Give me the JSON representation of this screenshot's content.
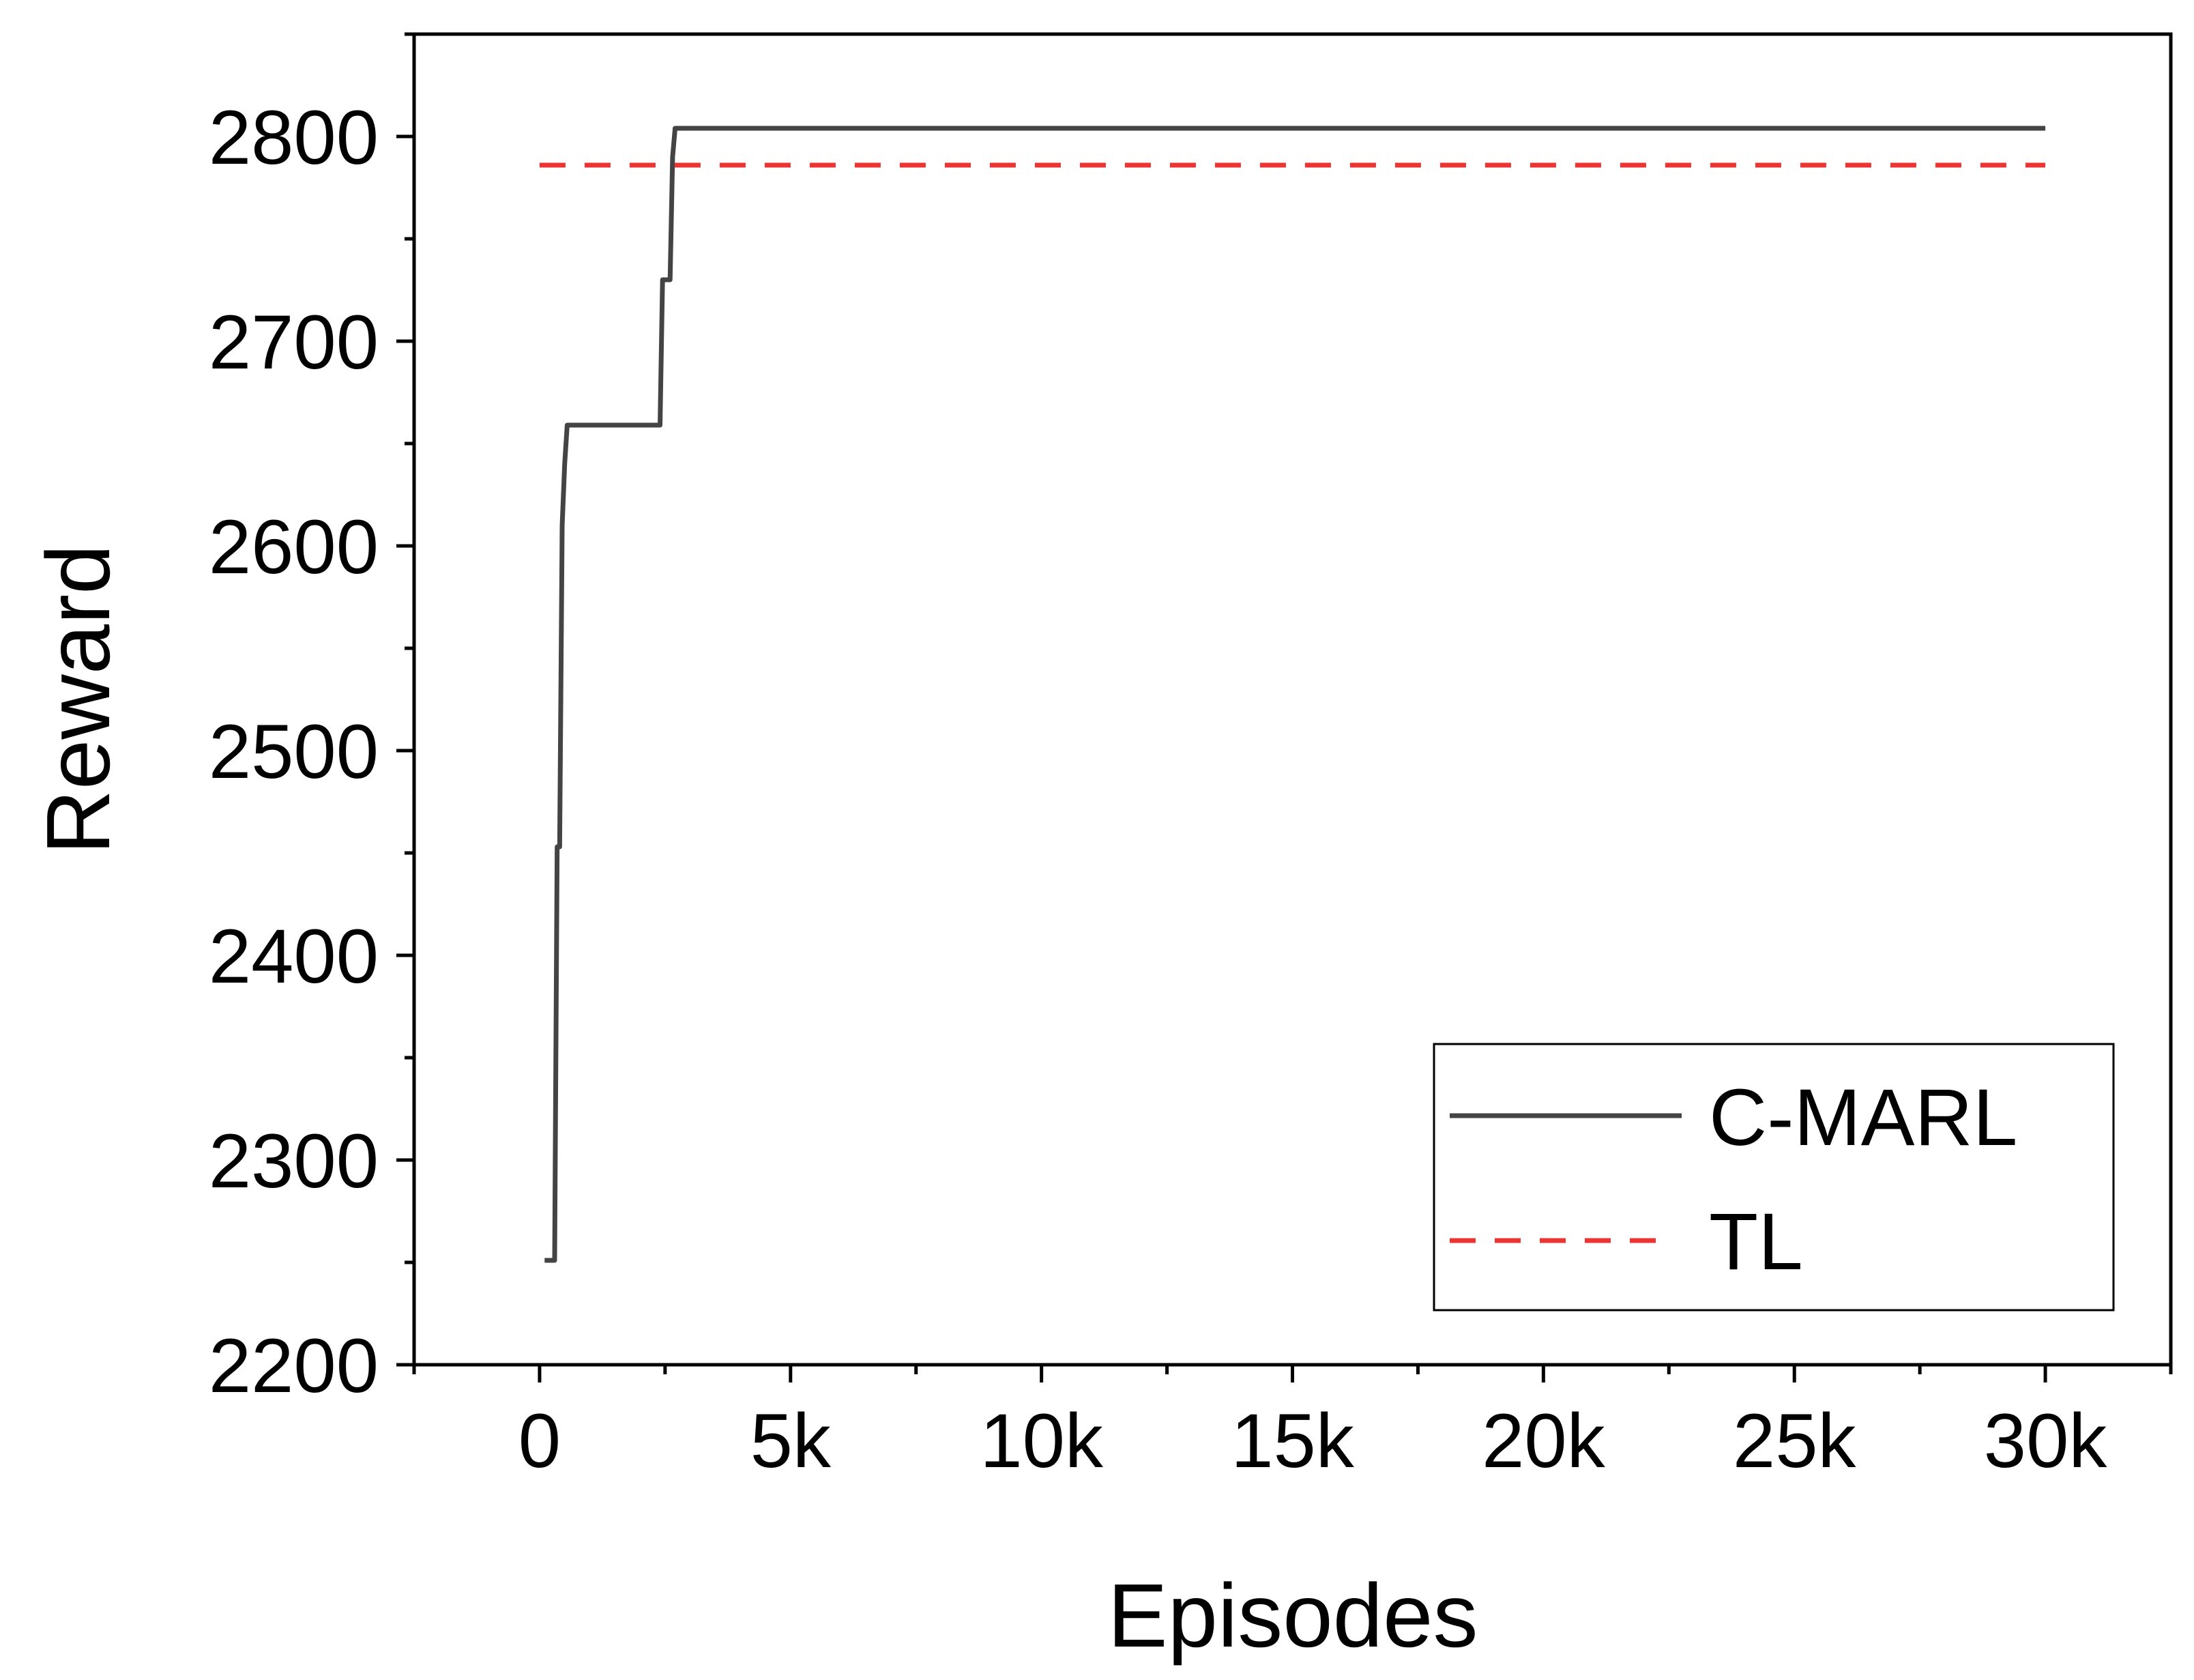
{
  "chart_data": {
    "type": "line",
    "xlabel": "Episodes",
    "ylabel": "Reward",
    "xlim": [
      -2500,
      32500
    ],
    "ylim": [
      2200,
      2850
    ],
    "x_ticks": [
      0,
      5000,
      10000,
      15000,
      20000,
      25000,
      30000
    ],
    "x_tick_labels": [
      "0",
      "5k",
      "10k",
      "15k",
      "20k",
      "25k",
      "30k"
    ],
    "y_ticks": [
      2200,
      2300,
      2400,
      2500,
      2600,
      2700,
      2800
    ],
    "y_tick_labels": [
      "2200",
      "2300",
      "2400",
      "2500",
      "2600",
      "2700",
      "2800"
    ],
    "grid": false,
    "legend_position": "bottom-right",
    "series": [
      {
        "name": "C-MARL",
        "color": "#444444",
        "style": "solid",
        "x": [
          100,
          300,
          350,
          400,
          450,
          500,
          550,
          2400,
          2450,
          2600,
          2650,
          2700,
          30000
        ],
        "y": [
          2251,
          2251,
          2453,
          2453,
          2610,
          2640,
          2659,
          2659,
          2730,
          2730,
          2790,
          2804,
          2804
        ]
      },
      {
        "name": "TL",
        "color": "#ee3333",
        "style": "dashed",
        "x": [
          0,
          30000
        ],
        "y": [
          2786,
          2786
        ]
      }
    ]
  }
}
